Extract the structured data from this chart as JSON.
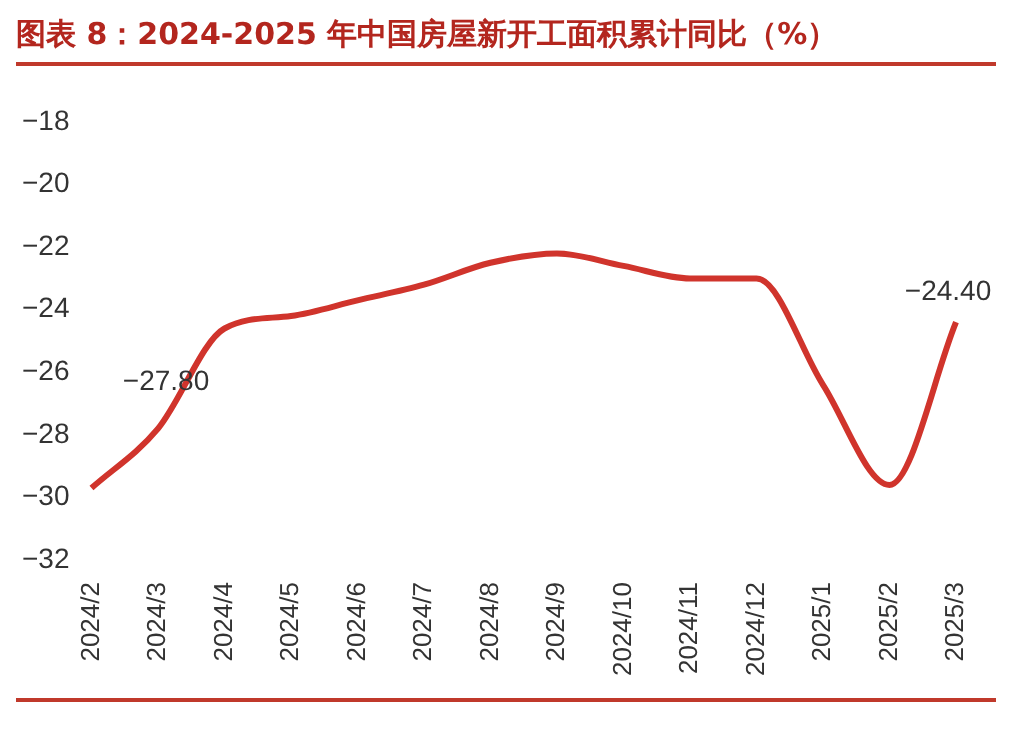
{
  "chart_data": {
    "type": "line",
    "title": "图表 8：2024-2025 年中国房屋新开工面积累计同比（%）",
    "categories": [
      "2024/2",
      "2024/3",
      "2024/4",
      "2024/5",
      "2024/6",
      "2024/7",
      "2024/8",
      "2024/9",
      "2024/10",
      "2024/11",
      "2024/12",
      "2025/1",
      "2025/2",
      "2025/3"
    ],
    "series": [
      {
        "color": "#d0342c",
        "values": [
          -29.7,
          -27.8,
          -24.6,
          -24.2,
          -23.7,
          -23.2,
          -22.5,
          -22.2,
          -22.6,
          -23.0,
          -23.0,
          -26.4,
          -29.6,
          -24.4
        ],
        "value_labels": [
          null,
          "−27.80",
          null,
          null,
          null,
          null,
          null,
          null,
          null,
          null,
          null,
          null,
          null,
          "−24.40"
        ]
      }
    ],
    "ylim": [
      -32,
      -18
    ],
    "yticks": [
      {
        "value": -32,
        "label": "−32"
      },
      {
        "value": -30,
        "label": "−30"
      },
      {
        "value": -28,
        "label": "−28"
      },
      {
        "value": -26,
        "label": "−26"
      },
      {
        "value": -24,
        "label": "−24"
      },
      {
        "value": -22,
        "label": "−22"
      },
      {
        "value": -20,
        "label": "−20"
      },
      {
        "value": -18,
        "label": "−18"
      }
    ],
    "grid": false,
    "legend": false,
    "marker": "none",
    "line_style": "solid"
  }
}
